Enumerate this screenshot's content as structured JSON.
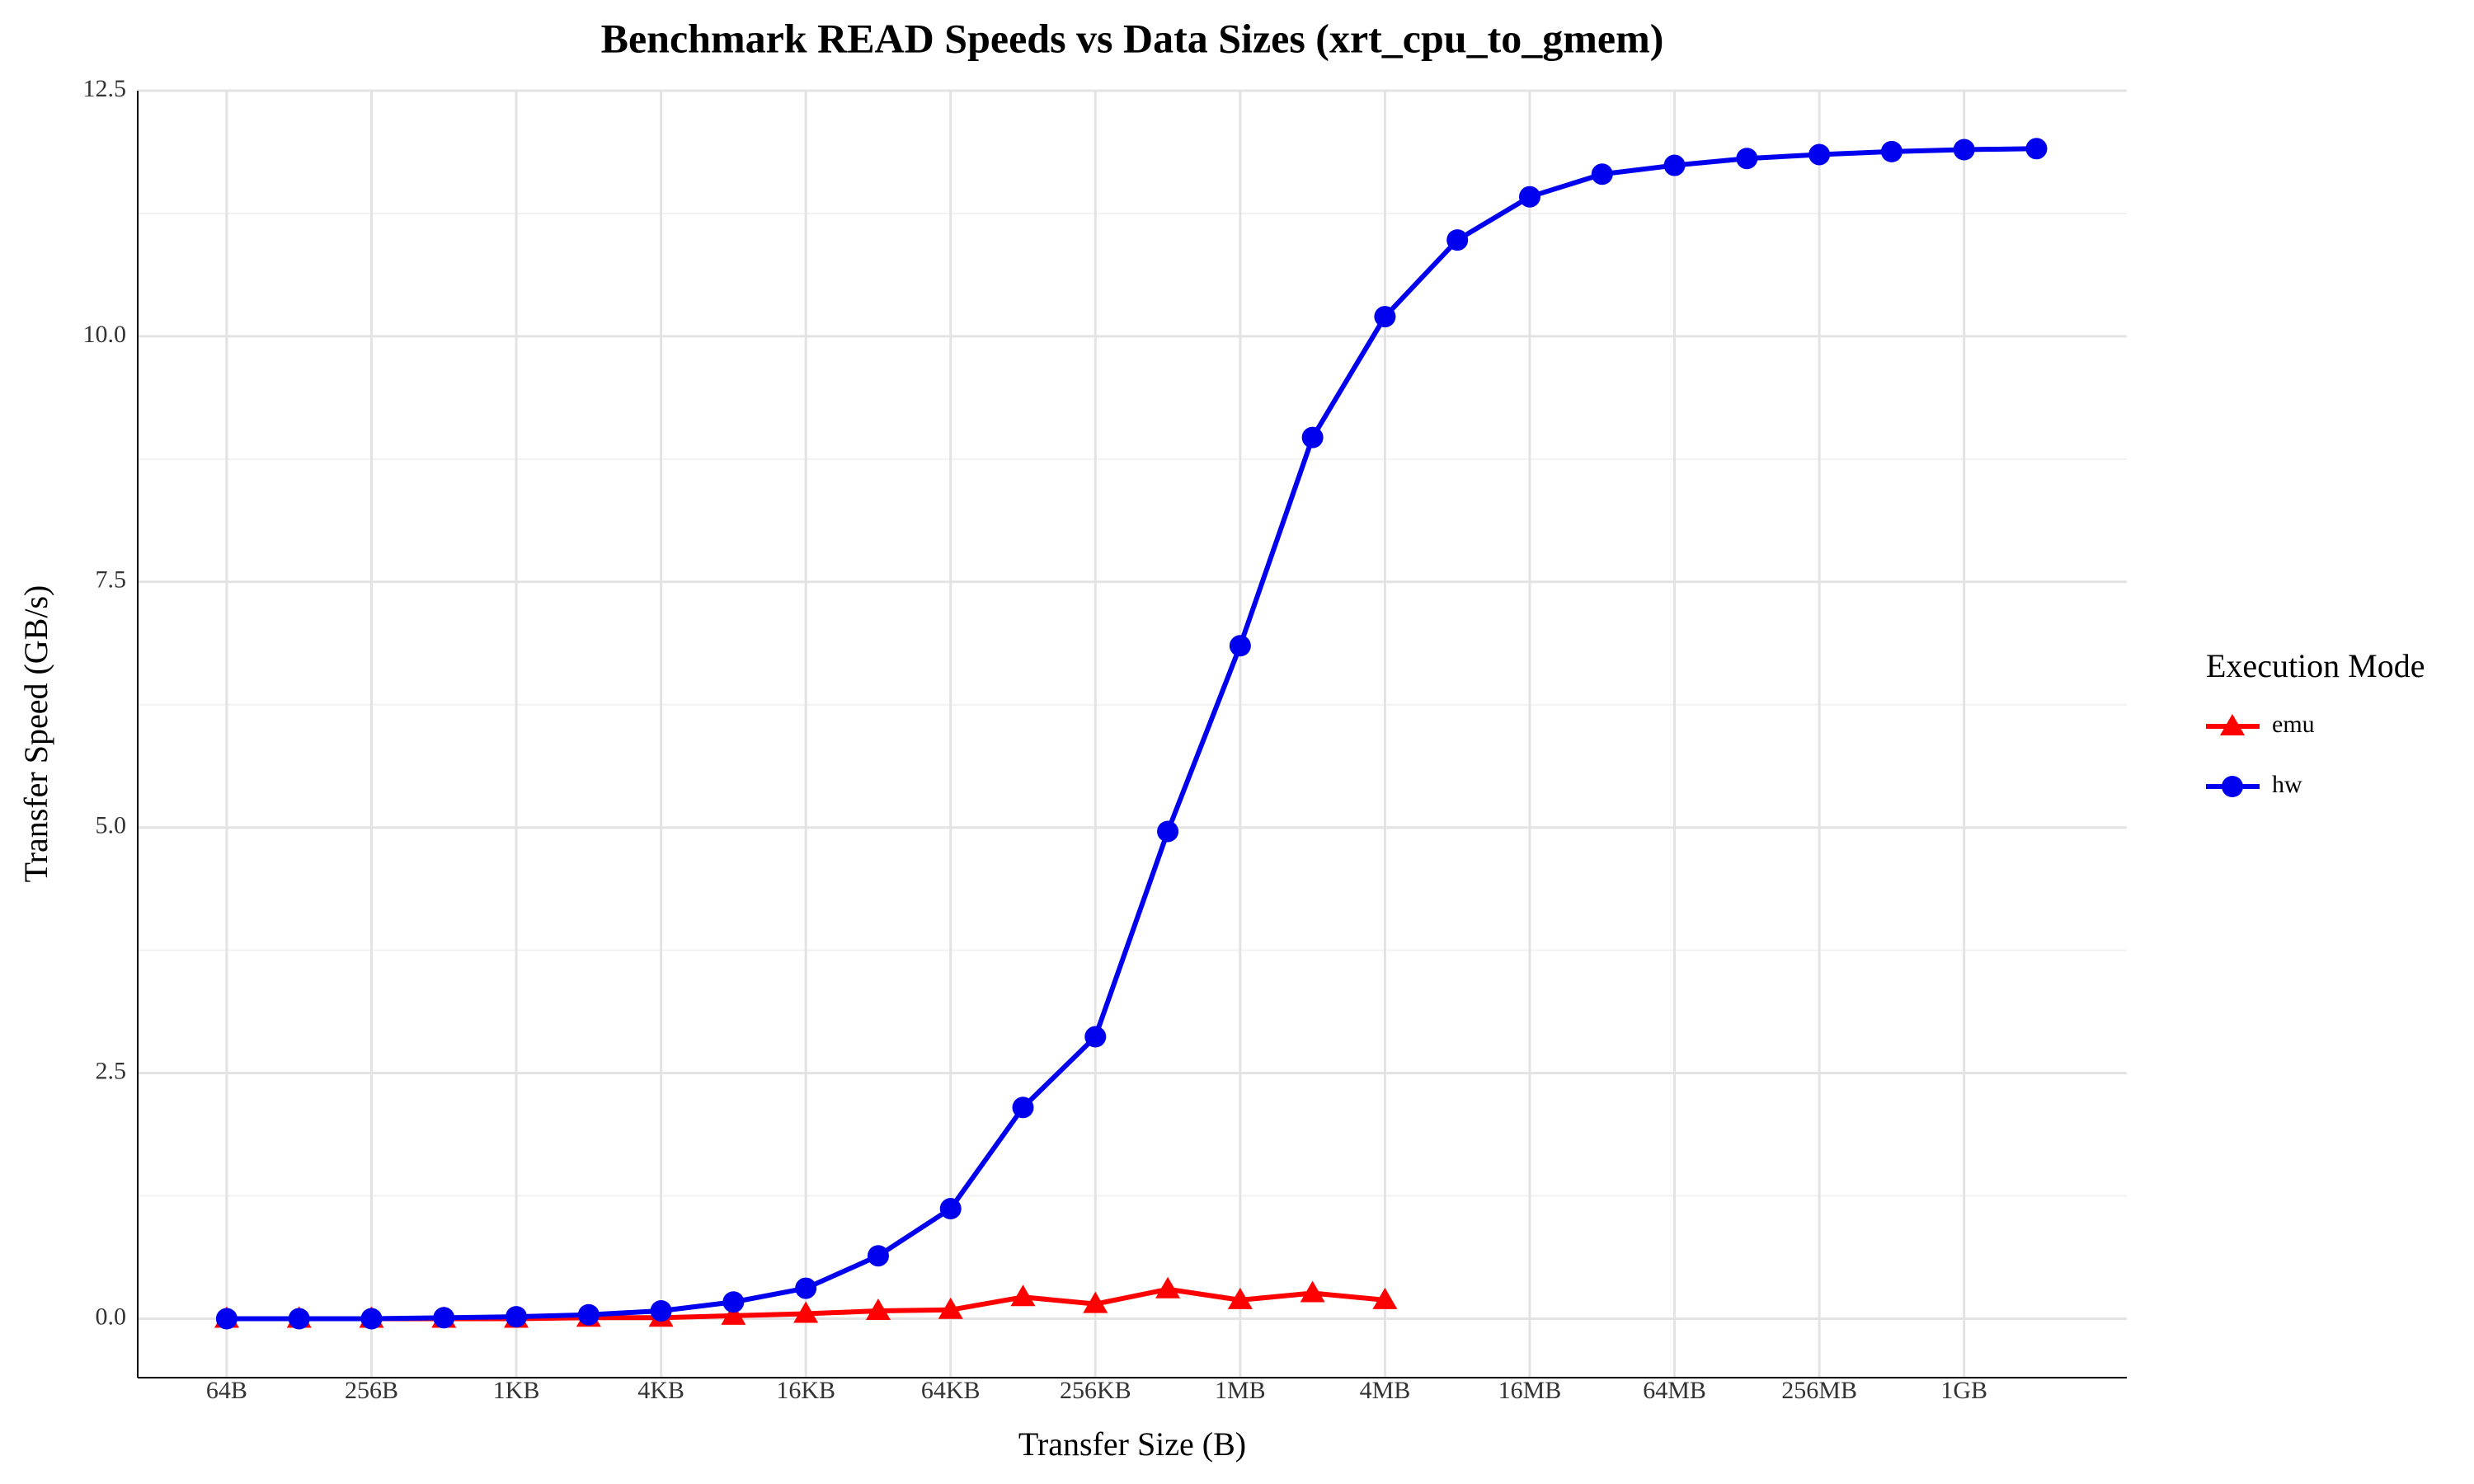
{
  "chart_data": {
    "type": "line",
    "title": "Benchmark READ Speeds vs Data Sizes (xrt_cpu_to_gmem)",
    "x_label": "Transfer Size (B)",
    "y_label": "Transfer Speed (GB/s)",
    "x": [
      64,
      128,
      256,
      512,
      1024,
      2048,
      4096,
      8192,
      16384,
      32768,
      65536,
      131072,
      262144,
      524288,
      1048576,
      2097152,
      4194304,
      8388608,
      16777216,
      33554432,
      67108864,
      134217728,
      268435456,
      536870912,
      1073741824,
      2147483648
    ],
    "series": [
      {
        "name": "emu",
        "color": "#ff0000",
        "marker": "triangle",
        "values": [
          0,
          0,
          0,
          0,
          0,
          0.01,
          0.01,
          0.03,
          0.05,
          0.08,
          0.09,
          0.22,
          0.15,
          0.3,
          0.19,
          0.26,
          0.19,
          null,
          null,
          null,
          null,
          null,
          null,
          null,
          null,
          null
        ]
      },
      {
        "name": "hw",
        "color": "#0000ee",
        "marker": "circle",
        "values": [
          0,
          0,
          0,
          0.01,
          0.02,
          0.04,
          0.08,
          0.17,
          0.31,
          0.64,
          1.12,
          2.15,
          2.87,
          4.96,
          6.85,
          8.97,
          10.2,
          10.98,
          11.42,
          11.65,
          11.74,
          11.81,
          11.85,
          11.88,
          11.9,
          11.91
        ]
      }
    ],
    "x_scale": "log2",
    "xlim": [
      27.3,
      5100000000
    ],
    "xticks": [
      {
        "value": 64,
        "label": "64B"
      },
      {
        "value": 256,
        "label": "256B"
      },
      {
        "value": 1024,
        "label": "1KB"
      },
      {
        "value": 4096,
        "label": "4KB"
      },
      {
        "value": 16384,
        "label": "16KB"
      },
      {
        "value": 65536,
        "label": "64KB"
      },
      {
        "value": 262144,
        "label": "256KB"
      },
      {
        "value": 1048576,
        "label": "1MB"
      },
      {
        "value": 4194304,
        "label": "4MB"
      },
      {
        "value": 16777216,
        "label": "16MB"
      },
      {
        "value": 67108864,
        "label": "64MB"
      },
      {
        "value": 268435456,
        "label": "256MB"
      },
      {
        "value": 1073741824,
        "label": "1GB"
      }
    ],
    "ylim": [
      -0.6,
      12.5
    ],
    "yticks": [
      {
        "value": 0,
        "label": "0.0"
      },
      2.5,
      {
        "value": 5,
        "label": "5.0"
      },
      7.5,
      {
        "value": 10,
        "label": "10.0"
      },
      12.5
    ],
    "grid": true,
    "legend_title": "Execution Mode",
    "legend": "right"
  }
}
